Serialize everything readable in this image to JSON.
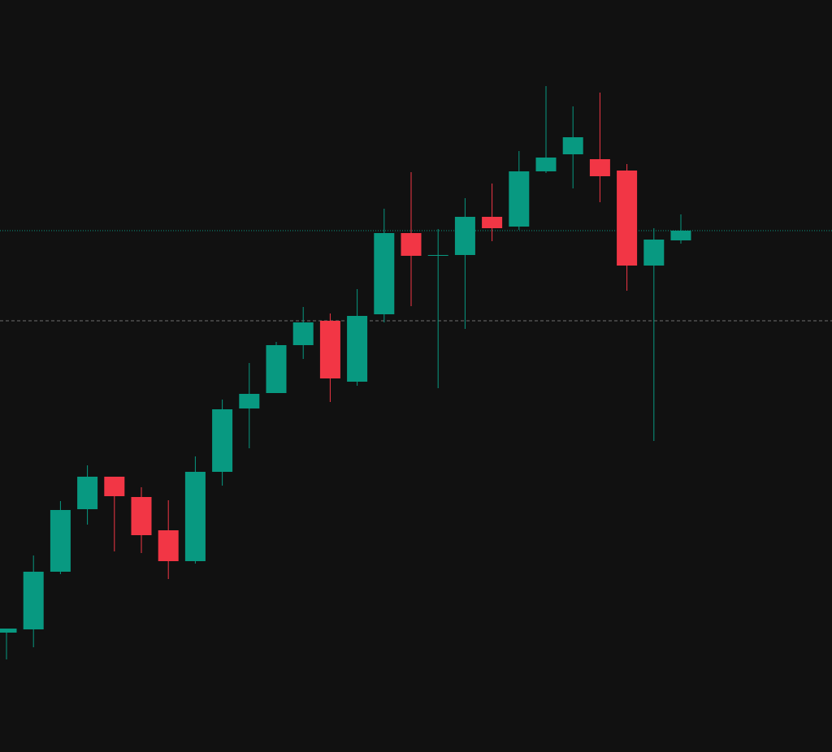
{
  "chart_data": {
    "type": "candlestick",
    "open": [
      147,
      151,
      222,
      299,
      339,
      314,
      273,
      235,
      345,
      423,
      442,
      501,
      531,
      456,
      539,
      639,
      612,
      612,
      659,
      647,
      715,
      736,
      730,
      716,
      599,
      630
    ],
    "high": [
      152,
      242,
      309,
      353,
      339,
      326,
      310,
      364,
      434,
      479,
      505,
      548,
      540,
      570,
      669,
      714,
      644,
      682,
      700,
      740,
      820,
      795,
      812,
      724,
      645,
      662
    ],
    "low": [
      114,
      129,
      219,
      280,
      247,
      245,
      213,
      232,
      328,
      374,
      442,
      484,
      431,
      451,
      529,
      549,
      448,
      521,
      629,
      643,
      713,
      694,
      677,
      568,
      383,
      626
    ],
    "close": [
      152,
      222,
      298,
      339,
      315,
      267,
      235,
      345,
      422,
      441,
      501,
      529,
      460,
      537,
      639,
      611,
      612,
      659,
      645,
      715,
      732,
      757,
      709,
      599,
      631,
      642
    ],
    "up_color": "#089981",
    "down_color": "#f23645",
    "ylim": [
      0,
      926
    ],
    "price_lines": [
      {
        "value": 642,
        "color": "#089981",
        "style": "dotted"
      },
      {
        "value": 531,
        "color": "#6f6f6f",
        "style": "dashed"
      }
    ]
  }
}
